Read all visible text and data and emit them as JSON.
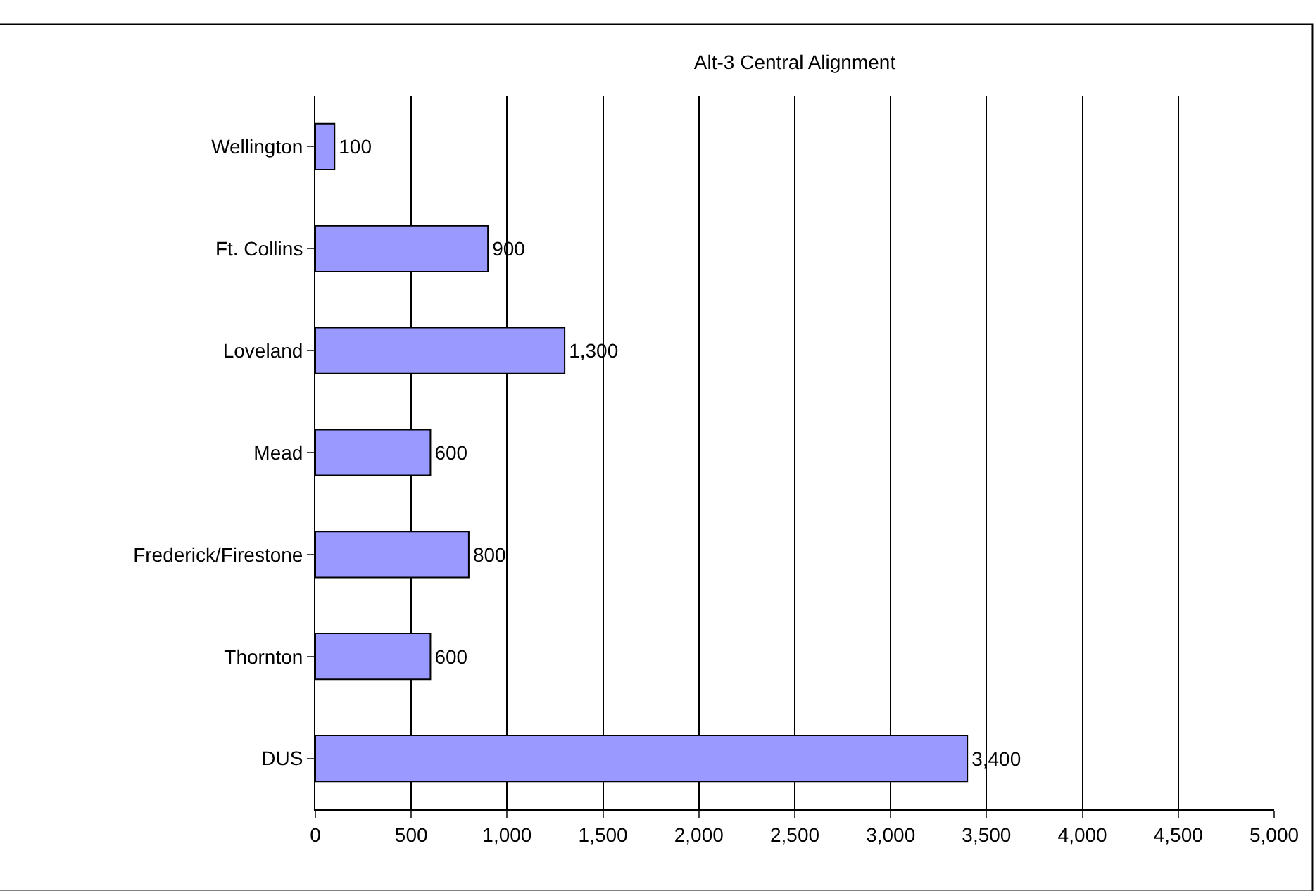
{
  "chart_data": {
    "type": "bar",
    "orientation": "horizontal",
    "title": "Alt-3 Central Alignment",
    "categories": [
      "Wellington",
      "Ft. Collins",
      "Loveland",
      "Mead",
      "Frederick/Firestone",
      "Thornton",
      "DUS"
    ],
    "values": [
      100,
      900,
      1300,
      600,
      800,
      600,
      3400
    ],
    "value_labels": [
      "100",
      "900",
      "1,300",
      "600",
      "800",
      "600",
      "3,400"
    ],
    "color": "#9999ff",
    "xlim": [
      0,
      5000
    ],
    "xticks": [
      0,
      500,
      {
        "value": 1000,
        "label": "1,000"
      },
      {
        "value": 1500,
        "label": "1,500"
      },
      {
        "value": 2000,
        "label": "2,000"
      },
      {
        "value": 2500,
        "label": "2,500"
      },
      {
        "value": 3000,
        "label": "3,000"
      },
      {
        "value": 3500,
        "label": "3,500"
      },
      {
        "value": 4000,
        "label": "4,000"
      },
      {
        "value": 4500,
        "label": "4,500"
      },
      {
        "value": 5000,
        "label": "5,000"
      }
    ],
    "grid": "x",
    "legend": false
  }
}
